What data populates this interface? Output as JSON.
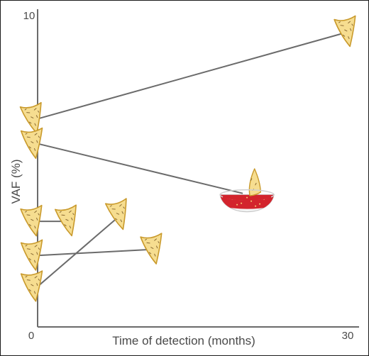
{
  "chart_data": {
    "type": "scatter",
    "title": "",
    "xlabel": "Time of detection (months)",
    "ylabel": "VAF (%)",
    "xlim": [
      0,
      30
    ],
    "ylim": [
      0,
      10
    ],
    "x_tick_labels": [
      "0",
      "30"
    ],
    "y_tick_labels": [
      "10"
    ],
    "grid": false,
    "legend": "none",
    "marker": "tortilla-chip-icon",
    "pairs": [
      {
        "from": [
          0,
          6.7
        ],
        "to": [
          30,
          9.5
        ],
        "end_marker": "tortilla-chip-icon"
      },
      {
        "from": [
          0,
          5.9
        ],
        "to": [
          19.8,
          4.3
        ],
        "end_marker": "salsa-bowl-icon"
      },
      {
        "from": [
          0,
          3.4
        ],
        "to": [
          3.1,
          3.4
        ],
        "end_marker": "tortilla-chip-icon"
      },
      {
        "from": [
          0,
          2.3
        ],
        "to": [
          11.3,
          2.5
        ],
        "end_marker": "tortilla-chip-icon"
      },
      {
        "from": [
          0,
          1.3
        ],
        "to": [
          8.0,
          3.6
        ],
        "end_marker": "tortilla-chip-icon"
      }
    ],
    "colors": {
      "axis": "#6b6b6b",
      "connector": "#6b6b6b",
      "chip_fill": "#f6dd90",
      "chip_stroke": "#c99a2c",
      "salsa": "#d3242d",
      "bowl": "#f4f4f4"
    }
  }
}
